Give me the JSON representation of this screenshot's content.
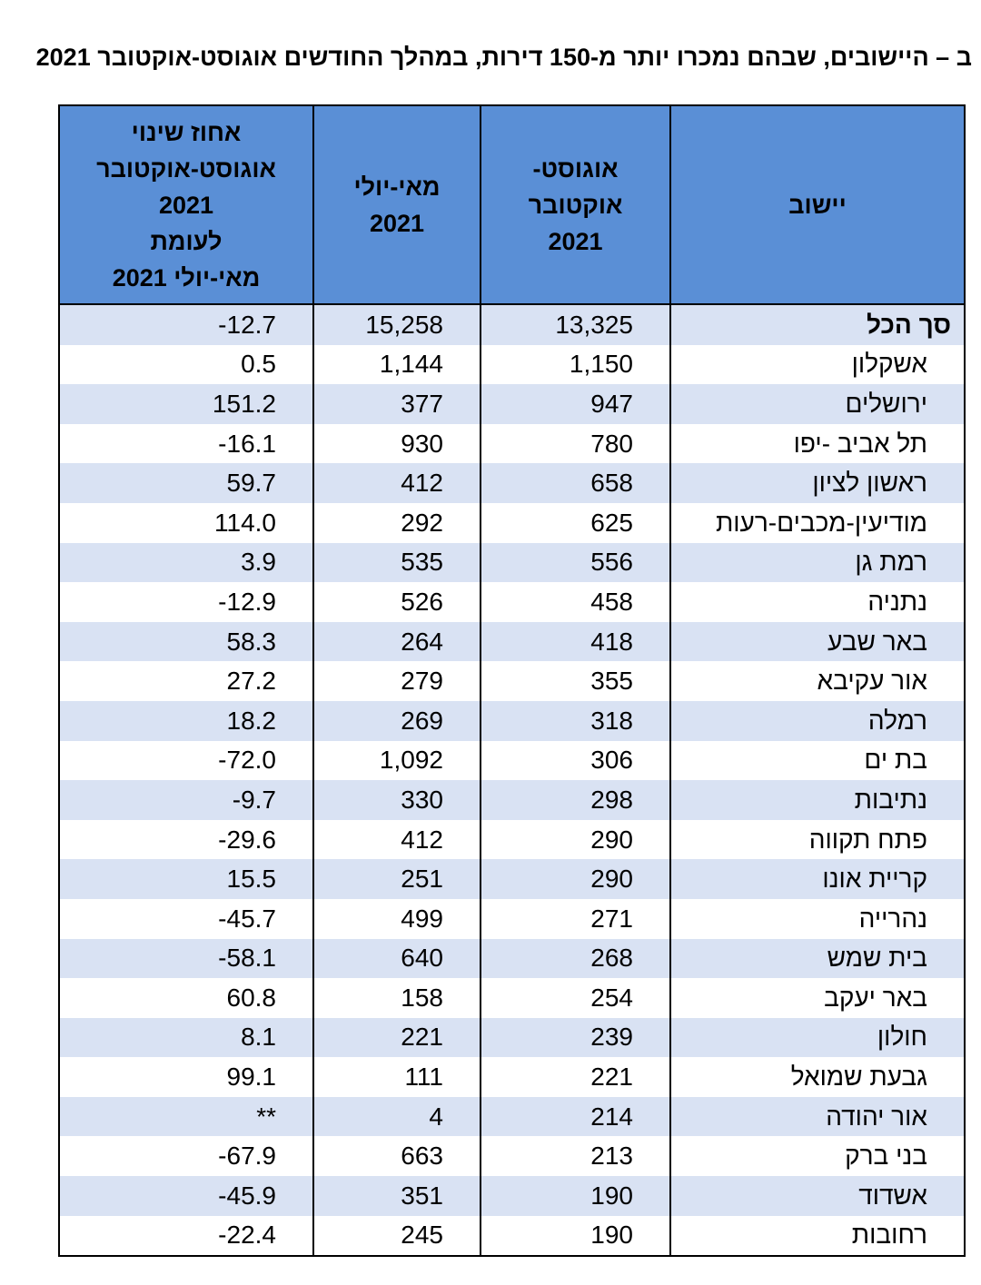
{
  "title": "ב – היישובים, שבהם נמכרו יותר מ-150 דירות, במהלך החודשים אוגוסט-אוקטובר 2021",
  "table": {
    "headers": [
      [
        "יישוב"
      ],
      [
        "אוגוסט-",
        "אוקטובר",
        "2021"
      ],
      [
        "מאי-יולי",
        "2021"
      ],
      [
        "אחוז שינוי",
        "אוגוסט-אוקטובר",
        "2021",
        "לעומת",
        "מאי-יולי 2021"
      ]
    ],
    "rows": [
      [
        "סך הכל",
        "13,325",
        "15,258",
        "-12.7"
      ],
      [
        "אשקלון",
        "1,150",
        "1,144",
        "0.5"
      ],
      [
        "ירושלים",
        "947",
        "377",
        "151.2"
      ],
      [
        "תל אביב -יפו",
        "780",
        "930",
        "-16.1"
      ],
      [
        "ראשון לציון",
        "658",
        "412",
        "59.7"
      ],
      [
        "מודיעין-מכבים-רעות",
        "625",
        "292",
        "114.0"
      ],
      [
        "רמת גן",
        "556",
        "535",
        "3.9"
      ],
      [
        "נתניה",
        "458",
        "526",
        "-12.9"
      ],
      [
        "באר שבע",
        "418",
        "264",
        "58.3"
      ],
      [
        "אור עקיבא",
        "355",
        "279",
        "27.2"
      ],
      [
        "רמלה",
        "318",
        "269",
        "18.2"
      ],
      [
        "בת ים",
        "306",
        "1,092",
        "-72.0"
      ],
      [
        "נתיבות",
        "298",
        "330",
        "-9.7"
      ],
      [
        "פתח תקווה",
        "290",
        "412",
        "-29.6"
      ],
      [
        "קריית אונו",
        "290",
        "251",
        "15.5"
      ],
      [
        "נהרייה",
        "271",
        "499",
        "-45.7"
      ],
      [
        "בית שמש",
        "268",
        "640",
        "-58.1"
      ],
      [
        "באר יעקב",
        "254",
        "158",
        "60.8"
      ],
      [
        "חולון",
        "239",
        "221",
        "8.1"
      ],
      [
        "גבעת שמואל",
        "221",
        "111",
        "99.1"
      ],
      [
        "אור יהודה",
        "214",
        "4",
        "**"
      ],
      [
        "בני ברק",
        "213",
        "663",
        "-67.9"
      ],
      [
        "אשדוד",
        "190",
        "351",
        "-45.9"
      ],
      [
        "רחובות",
        "190",
        "245",
        "-22.4"
      ]
    ]
  }
}
